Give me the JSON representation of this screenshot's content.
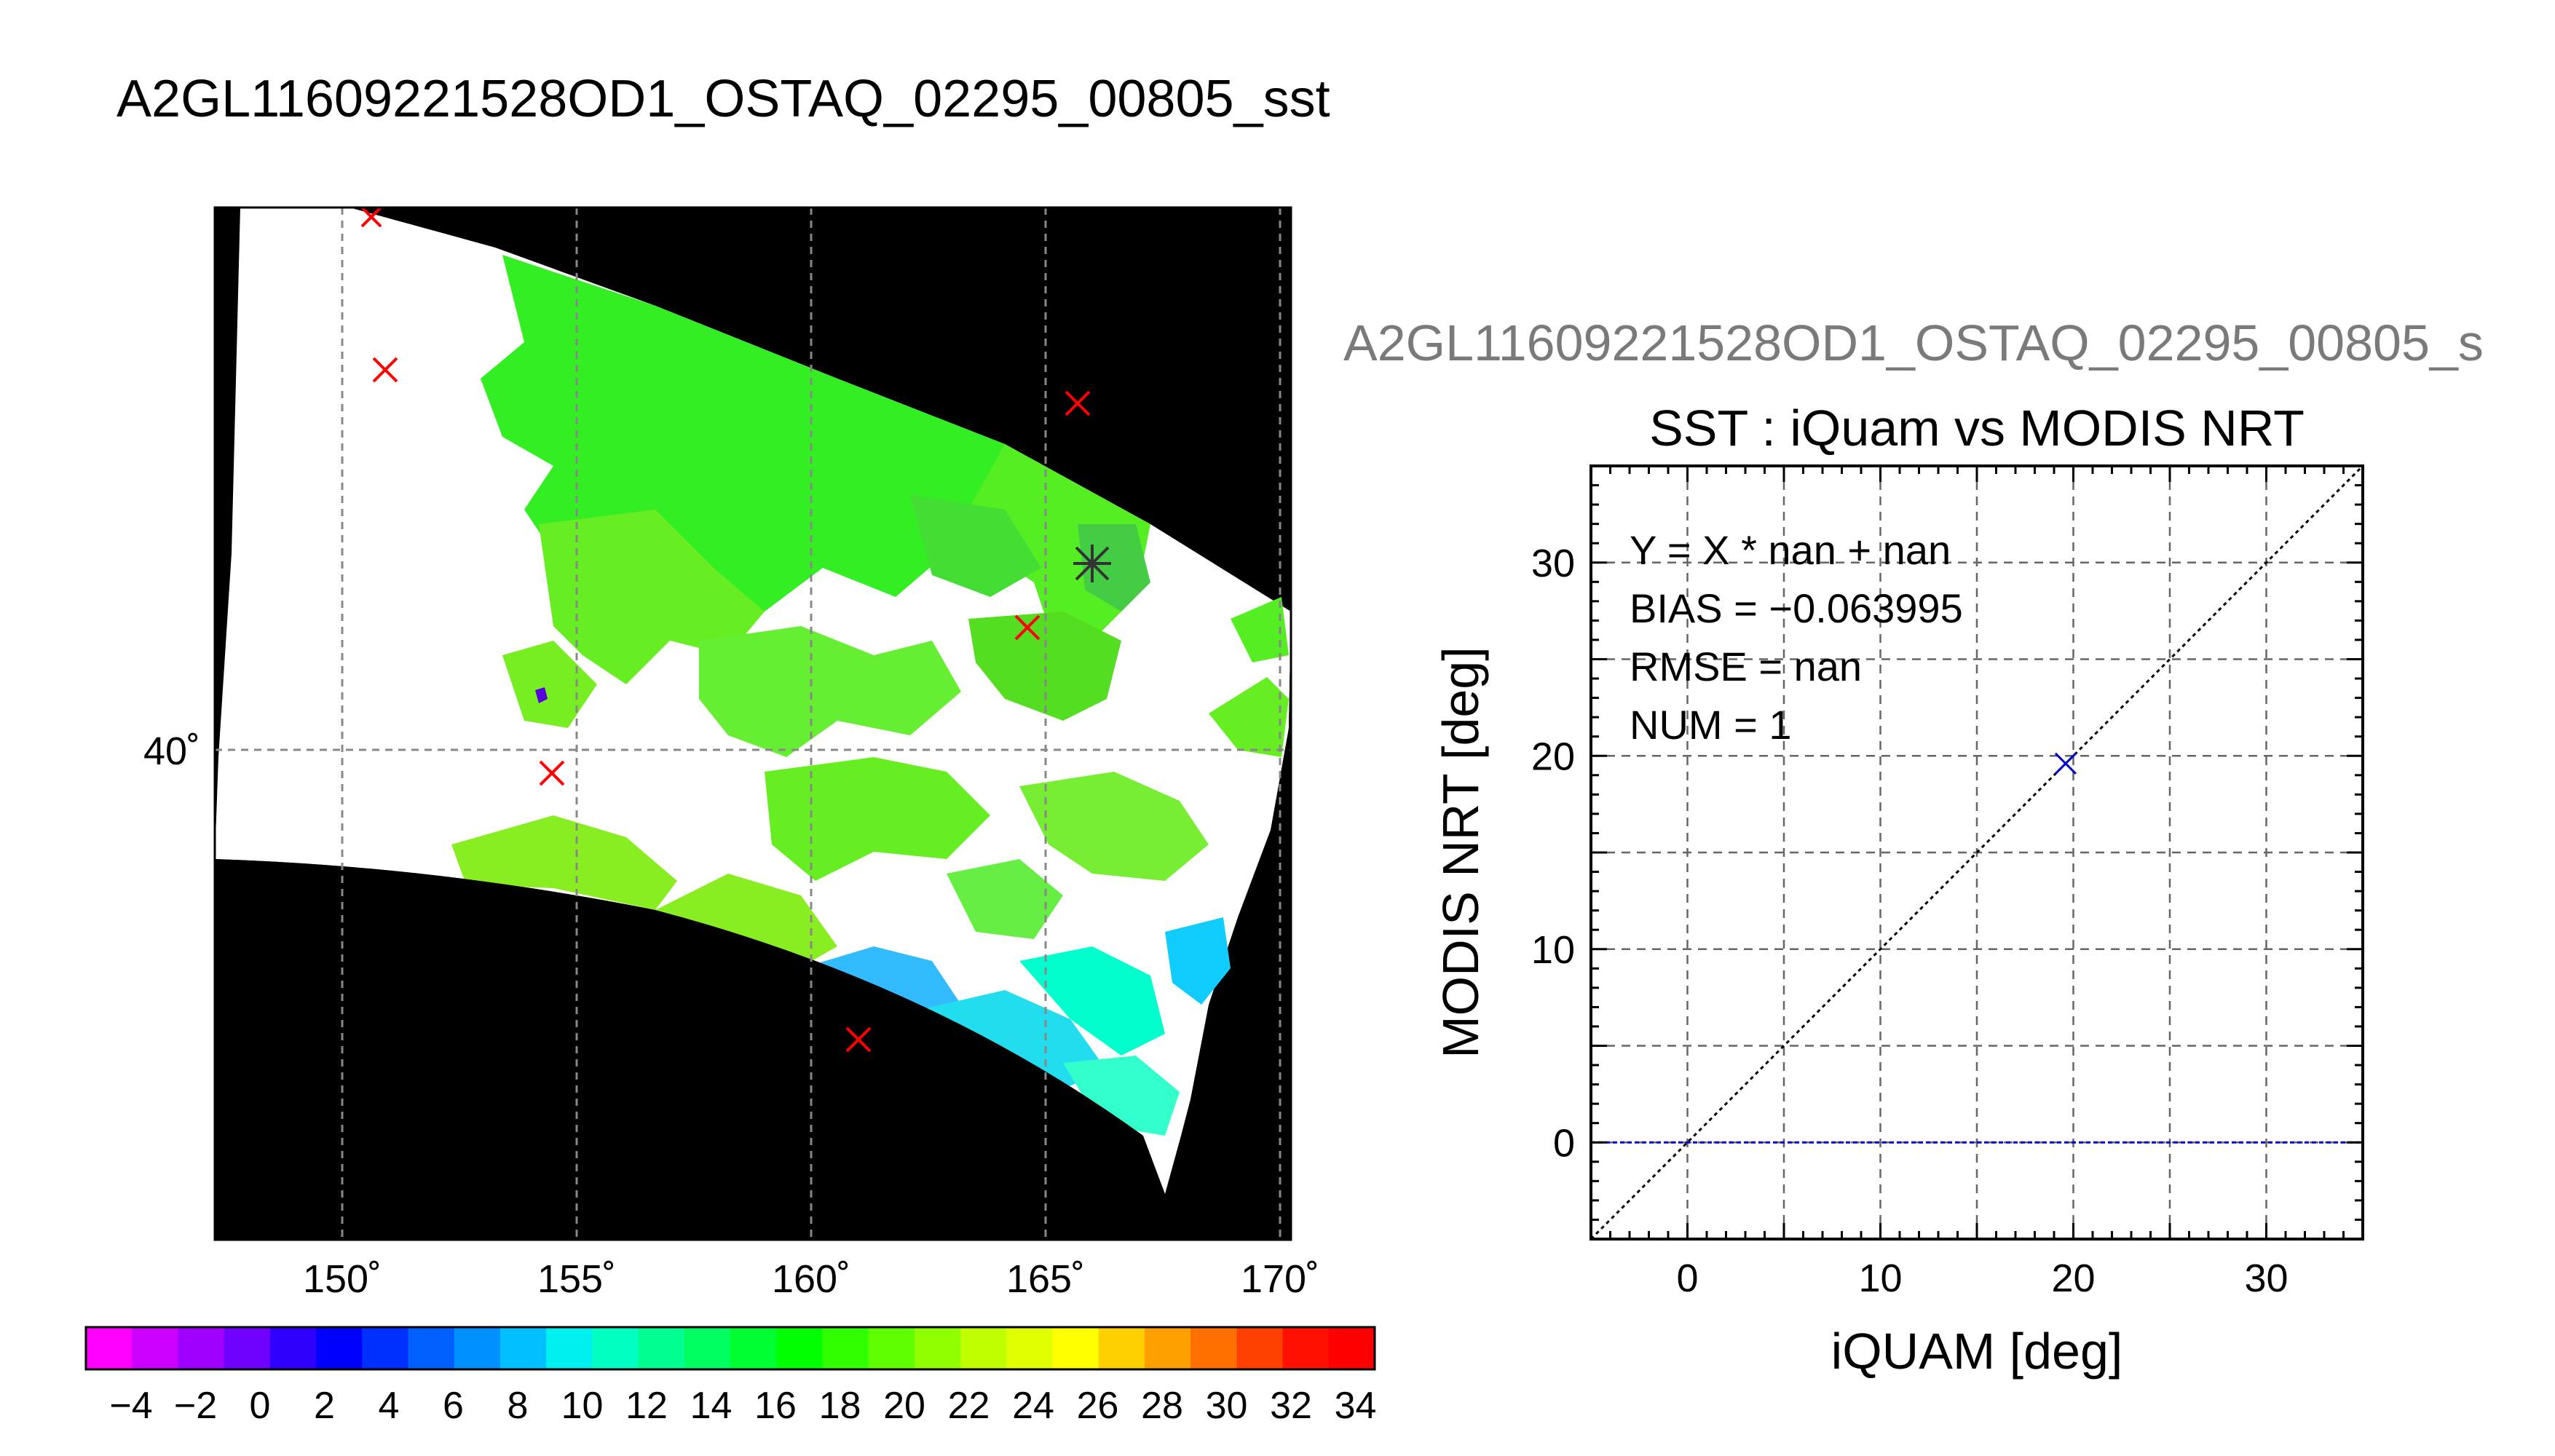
{
  "figure_title": "A2GL11609221528OD1_OSTAQ_02295_00805_sst",
  "map": {
    "lon_ticks": [
      "150˚",
      "155˚",
      "160˚",
      "165˚",
      "170˚"
    ],
    "lat_ticks": [
      "40˚"
    ],
    "colors": {
      "background": "#000000",
      "swath_nodata": "#ffffff",
      "gridline": "#888888",
      "matchup_marker": "#ff0000",
      "center_marker": "#333333"
    }
  },
  "colorbar": {
    "tick_labels": [
      "−4",
      "−2",
      "0",
      "2",
      "4",
      "6",
      "8",
      "10",
      "12",
      "14",
      "16",
      "18",
      "20",
      "22",
      "24",
      "26",
      "28",
      "30",
      "32",
      "34"
    ],
    "colors": [
      "#ff00ff",
      "#cc00ff",
      "#a000ff",
      "#7000ff",
      "#3000ff",
      "#0000ff",
      "#0030ff",
      "#0060ff",
      "#0090ff",
      "#00c0ff",
      "#00f0f0",
      "#00ffc0",
      "#00ff90",
      "#00ff60",
      "#00ff30",
      "#00ff00",
      "#30ff00",
      "#60ff00",
      "#90ff00",
      "#c0ff00",
      "#e0ff00",
      "#ffff00",
      "#ffd000",
      "#ffa000",
      "#ff7000",
      "#ff4000",
      "#ff1000",
      "#ff0000"
    ]
  },
  "scatter": {
    "subtitle": "A2GL11609221528OD1_OSTAQ_02295_00805_s",
    "title": "SST : iQuam vs MODIS NRT",
    "stats": [
      "Y = X * nan + nan",
      "BIAS = −0.063995",
      "RMSE = nan",
      "NUM = 1"
    ]
  },
  "chart_data": {
    "type": "scatter",
    "title": "SST : iQuam vs MODIS NRT",
    "xlabel": "iQUAM [deg]",
    "ylabel": "MODIS NRT [deg]",
    "xlim": [
      -5,
      35
    ],
    "ylim": [
      -5,
      35
    ],
    "xticks": [
      0,
      10,
      20,
      30
    ],
    "yticks": [
      0,
      10,
      20,
      30
    ],
    "x_minor_grid": [
      -5,
      5,
      15,
      25,
      35
    ],
    "y_minor_grid": [
      -5,
      5,
      15,
      25,
      35
    ],
    "grid": true,
    "series": [
      {
        "values": [
          {
            "x": 19.6,
            "y": 19.6
          }
        ],
        "color": "#0000cc",
        "marker": "x"
      }
    ],
    "reference_lines": [
      {
        "kind": "one-to-one",
        "from": [
          -5,
          -5
        ],
        "to": [
          35,
          35
        ],
        "color": "#000000",
        "style": "dotted"
      },
      {
        "kind": "horizontal",
        "y": 0,
        "color": "#0000cc",
        "style": "dashed"
      }
    ]
  }
}
